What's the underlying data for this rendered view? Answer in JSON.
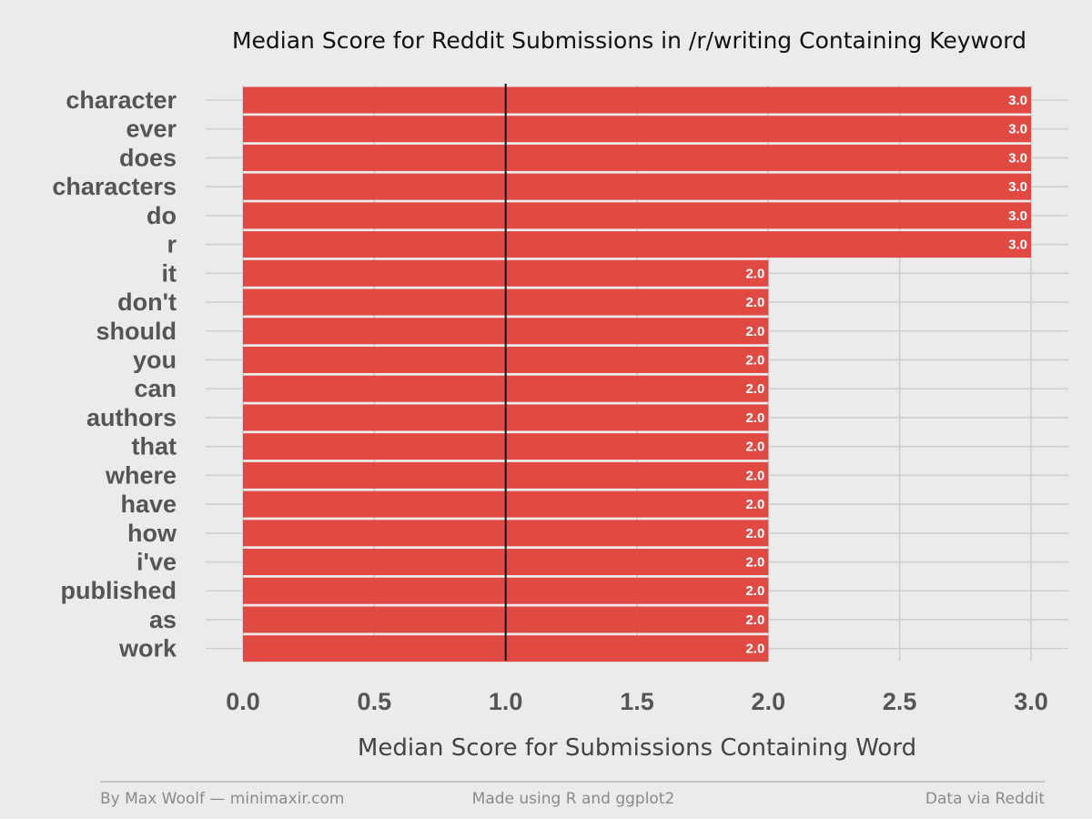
{
  "chart_data": {
    "type": "bar",
    "orientation": "horizontal",
    "title": "Median Score for Reddit Submissions in /r/writing Containing Keyword",
    "xlabel": "Median Score for Submissions Containing Word",
    "ylabel": "",
    "categories": [
      "character",
      "ever",
      "does",
      "characters",
      "do",
      "r",
      "it",
      "don't",
      "should",
      "you",
      "can",
      "authors",
      "that",
      "where",
      "have",
      "how",
      "i've",
      "published",
      "as",
      "work"
    ],
    "values": [
      3.0,
      3.0,
      3.0,
      3.0,
      3.0,
      3.0,
      2.0,
      2.0,
      2.0,
      2.0,
      2.0,
      2.0,
      2.0,
      2.0,
      2.0,
      2.0,
      2.0,
      2.0,
      2.0,
      2.0
    ],
    "data_labels": [
      "3.0",
      "3.0",
      "3.0",
      "3.0",
      "3.0",
      "3.0",
      "2.0",
      "2.0",
      "2.0",
      "2.0",
      "2.0",
      "2.0",
      "2.0",
      "2.0",
      "2.0",
      "2.0",
      "2.0",
      "2.0",
      "2.0",
      "2.0"
    ],
    "xlim": [
      0,
      3
    ],
    "xticks": [
      0,
      0.5,
      1,
      1.5,
      2,
      2.5,
      3
    ],
    "xtick_labels": [
      "0.0",
      "0.5",
      "1.0",
      "1.5",
      "2.0",
      "2.5",
      "3.0"
    ],
    "reference_line": 1.0,
    "grid": true,
    "bar_color": "#e0403a",
    "background_color": "#ebebeb"
  },
  "footer": {
    "left": "By Max Woolf — minimaxir.com",
    "center": "Made using R and ggplot2",
    "right": "Data via Reddit"
  }
}
